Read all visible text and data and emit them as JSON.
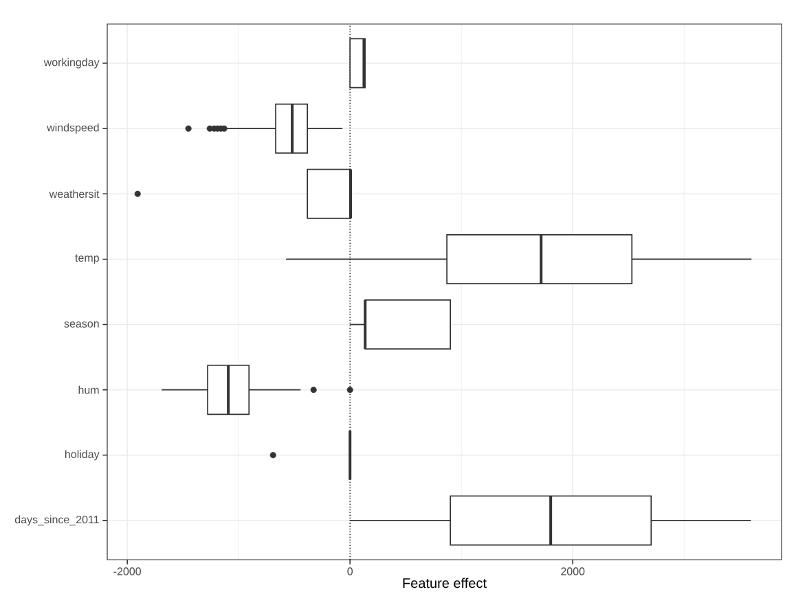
{
  "chart_data": {
    "type": "box",
    "orientation": "horizontal",
    "xlabel": "Feature effect",
    "categories": [
      "workingday",
      "windspeed",
      "weathersit",
      "temp",
      "season",
      "hum",
      "holiday",
      "days_since_2011"
    ],
    "color": "#333333",
    "boxes": [
      {
        "low": 0,
        "q1": 0,
        "median": 125,
        "q3": 135,
        "high": 135
      },
      {
        "low": -1105,
        "q1": -667,
        "median": -519,
        "q3": -383,
        "high": -68,
        "outliers": [
          -1451,
          -1259,
          -1220,
          -1190,
          -1160,
          -1130
        ]
      },
      {
        "low": -383,
        "q1": -383,
        "median": 5,
        "q3": 5,
        "high": 5,
        "outliers": [
          -1907
        ]
      },
      {
        "low": -574,
        "q1": 870,
        "median": 1716,
        "q3": 2531,
        "high": 3605
      },
      {
        "low": 0,
        "q1": 136,
        "median": 136,
        "q3": 901,
        "high": 901
      },
      {
        "low": -1691,
        "q1": -1278,
        "median": -1093,
        "q3": -907,
        "high": -444,
        "outliers": [
          -327,
          0
        ]
      },
      {
        "low": 0,
        "q1": 0,
        "median": 0,
        "q3": 0,
        "high": 0,
        "outliers": [
          -691
        ]
      },
      {
        "low": 0,
        "q1": 901,
        "median": 1802,
        "q3": 2704,
        "high": 3599
      }
    ],
    "xlim": [
      -2180,
      3875
    ],
    "xticks": [
      -2000,
      {
        "value": -1000,
        "label": null
      },
      0,
      {
        "value": 1000,
        "label": null
      },
      2000,
      {
        "value": 3000,
        "label": null
      }
    ],
    "grid": true,
    "ref_lines": [
      {
        "axis": "x",
        "value": 0,
        "line_style": "dotted",
        "color": "#000000"
      }
    ]
  }
}
